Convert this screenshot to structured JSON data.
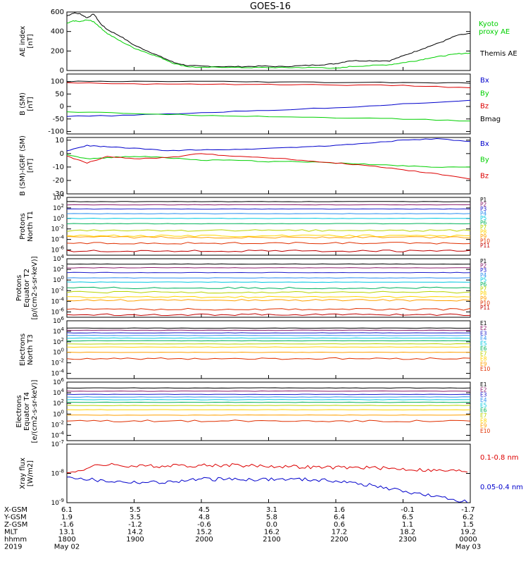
{
  "title": "GOES-16",
  "colors": {
    "black": "#000000",
    "green": "#00d000",
    "blue": "#0000cc",
    "red": "#dd0000",
    "P1": "#000000",
    "P2": "#8b1a6b",
    "P3": "#1c1ccc",
    "P4": "#2b8ff0",
    "P5": "#00c8e0",
    "P6": "#00b25a",
    "P7": "#b8d400",
    "P8": "#ffd400",
    "P9": "#ffa000",
    "P10": "#e03000",
    "P11": "#c00000"
  },
  "footer": {
    "rows": [
      {
        "label": "X-GSM",
        "values": [
          "6.1",
          "5.5",
          "4.5",
          "3.1",
          "1.6",
          "-0.1",
          "-1.7"
        ]
      },
      {
        "label": "Y-GSM",
        "values": [
          "1.9",
          "3.5",
          "4.8",
          "5.8",
          "6.4",
          "6.5",
          "6.2"
        ]
      },
      {
        "label": "Z-GSM",
        "values": [
          "-1.6",
          "-1.2",
          "-0.6",
          "0.0",
          "0.6",
          "1.1",
          "1.5"
        ]
      },
      {
        "label": "MLT",
        "values": [
          "13.1",
          "14.2",
          "15.2",
          "16.2",
          "17.2",
          "18.2",
          "19.2"
        ]
      },
      {
        "label": "hhmm",
        "values": [
          "1800",
          "1900",
          "2000",
          "2100",
          "2200",
          "2300",
          "0000"
        ]
      }
    ],
    "year": "2019",
    "date_start": "May 02",
    "date_end": "May 03"
  },
  "chart_data": [
    {
      "type": "line",
      "ylabel": "AE index\n[nT]",
      "ylim": [
        0,
        600
      ],
      "scale": "linear",
      "yticks": [
        "0",
        "200",
        "400",
        "600"
      ],
      "x_range_hours": [
        18,
        24
      ],
      "series": [
        {
          "name": "Themis AE",
          "color": "black",
          "x": [
            18.0,
            18.1,
            18.2,
            18.3,
            18.4,
            18.5,
            18.6,
            18.8,
            19.0,
            19.2,
            19.4,
            19.6,
            19.8,
            20.0,
            20.3,
            20.6,
            20.9,
            21.2,
            21.5,
            21.8,
            22.0,
            22.2,
            22.5,
            22.8,
            23.0,
            23.2,
            23.4,
            23.6,
            23.8,
            24.0
          ],
          "y": [
            560,
            590,
            580,
            540,
            580,
            480,
            420,
            350,
            260,
            200,
            140,
            80,
            50,
            45,
            40,
            40,
            45,
            40,
            50,
            60,
            70,
            100,
            100,
            100,
            150,
            200,
            250,
            300,
            360,
            380
          ]
        },
        {
          "name": "Kyoto\nproxy AE",
          "color": "green",
          "x": [
            18.0,
            18.1,
            18.2,
            18.3,
            18.4,
            18.5,
            18.6,
            18.8,
            19.0,
            19.2,
            19.4,
            19.6,
            19.8,
            20.0,
            20.3,
            20.6,
            20.9,
            21.2,
            21.5,
            21.8,
            22.0,
            22.2,
            22.5,
            22.8,
            23.0,
            23.2,
            23.4,
            23.6,
            23.8,
            24.0
          ],
          "y": [
            480,
            510,
            500,
            520,
            500,
            440,
            380,
            300,
            230,
            180,
            130,
            70,
            40,
            30,
            35,
            30,
            30,
            30,
            30,
            30,
            20,
            40,
            50,
            60,
            80,
            100,
            130,
            150,
            170,
            180
          ]
        }
      ]
    },
    {
      "type": "line",
      "ylabel": "B (SM)\n[nT]",
      "ylim": [
        -110,
        130
      ],
      "scale": "linear",
      "yticks": [
        "-100",
        "-50",
        "0",
        "50",
        "100"
      ],
      "series": [
        {
          "name": "Bx",
          "color": "blue",
          "x": [
            18,
            19,
            20,
            21,
            22,
            23,
            24
          ],
          "y": [
            -40,
            -35,
            -25,
            -15,
            -5,
            10,
            25
          ]
        },
        {
          "name": "By",
          "color": "green",
          "x": [
            18,
            19,
            20,
            21,
            22,
            23,
            24
          ],
          "y": [
            -22,
            -28,
            -35,
            -40,
            -45,
            -50,
            -58
          ]
        },
        {
          "name": "Bz",
          "color": "red",
          "x": [
            18,
            19,
            20,
            21,
            22,
            23,
            24
          ],
          "y": [
            95,
            90,
            90,
            88,
            86,
            84,
            75
          ]
        },
        {
          "name": "Bmag",
          "color": "black",
          "x": [
            18,
            19,
            20,
            21,
            22,
            23,
            24
          ],
          "y": [
            100,
            100,
            100,
            98,
            96,
            96,
            93
          ]
        }
      ]
    },
    {
      "type": "line",
      "ylabel": "B (SM)-IGRF (SM)\n[nT]",
      "ylim": [
        -30,
        12
      ],
      "scale": "linear",
      "yticks": [
        "-30",
        "-20",
        "-10",
        "0",
        "10"
      ],
      "series": [
        {
          "name": "Bx",
          "color": "blue",
          "x": [
            18,
            18.3,
            18.6,
            19,
            19.5,
            20,
            20.5,
            21,
            21.5,
            22,
            22.5,
            23,
            23.5,
            24
          ],
          "y": [
            2,
            6,
            5,
            4,
            2,
            3,
            3,
            4,
            5,
            6,
            8,
            10,
            11,
            9
          ]
        },
        {
          "name": "By",
          "color": "green",
          "x": [
            18,
            18.3,
            18.6,
            19,
            19.5,
            20,
            20.5,
            21,
            21.5,
            22,
            22.5,
            23,
            23.5,
            24
          ],
          "y": [
            -1,
            -4,
            -3,
            -2,
            -3,
            -5,
            -5,
            -6,
            -6,
            -7,
            -8,
            -9,
            -10,
            -10
          ]
        },
        {
          "name": "Bz",
          "color": "red",
          "x": [
            18,
            18.3,
            18.6,
            19,
            19.5,
            20,
            20.5,
            21,
            21.5,
            22,
            22.5,
            23,
            23.5,
            24
          ],
          "y": [
            -2,
            -7,
            -2,
            -4,
            -3,
            0,
            -2,
            -3,
            -5,
            -7,
            -9,
            -12,
            -15,
            -19
          ]
        }
      ]
    },
    {
      "type": "line",
      "ylabel": "Protons\nNorth T1",
      "ylim": [
        -7,
        4
      ],
      "scale": "log10",
      "yticks": [
        "10-6",
        "10-4",
        "10-2",
        "100",
        "102",
        "104"
      ],
      "series": [
        {
          "name": "P1",
          "color": "P1",
          "log10": 3.2
        },
        {
          "name": "P2",
          "color": "P2",
          "log10": 2.6
        },
        {
          "name": "P3",
          "color": "P3",
          "log10": 1.8
        },
        {
          "name": "P4",
          "color": "P4",
          "log10": 0.9
        },
        {
          "name": "P5",
          "color": "P5",
          "log10": 0.0
        },
        {
          "name": "P6",
          "color": "P6",
          "log10": -1.0
        },
        {
          "name": "P7",
          "color": "P7",
          "log10": -2.3
        },
        {
          "name": "P8",
          "color": "P8",
          "log10": -3.3
        },
        {
          "name": "P9",
          "color": "P9",
          "log10": -3.6
        },
        {
          "name": "P10",
          "color": "P10",
          "log10": -4.7
        },
        {
          "name": "P11",
          "color": "P11",
          "log10": -6.2
        }
      ]
    },
    {
      "type": "line",
      "ylabel": "Protons\nEquator T2\n[p/(cm2-s-sr-keV)]",
      "ylim": [
        -7,
        4
      ],
      "scale": "log10",
      "yticks": [
        "10-6",
        "10-4",
        "10-2",
        "100",
        "102",
        "104"
      ],
      "series": [
        {
          "name": "P1",
          "color": "P1",
          "log10": 3.0
        },
        {
          "name": "P2",
          "color": "P2",
          "log10": 2.3
        },
        {
          "name": "P3",
          "color": "P3",
          "log10": 1.4
        },
        {
          "name": "P4",
          "color": "P4",
          "log10": 0.4
        },
        {
          "name": "P5",
          "color": "P5",
          "log10": -0.4
        },
        {
          "name": "P6",
          "color": "P6",
          "log10": -1.5
        },
        {
          "name": "P7",
          "color": "P7",
          "log10": -2.3
        },
        {
          "name": "P8",
          "color": "P8",
          "log10": -3.2
        },
        {
          "name": "P9",
          "color": "P9",
          "log10": -3.8
        },
        {
          "name": "P10",
          "color": "P10",
          "log10": -5.5
        },
        {
          "name": "P11",
          "color": "P11",
          "log10": -6.5
        }
      ]
    },
    {
      "type": "line",
      "ylabel": "Electrons\nNorth T3",
      "ylim": [
        -5,
        6
      ],
      "scale": "log10",
      "yticks": [
        "10-4",
        "10-2",
        "100",
        "102",
        "104",
        "106"
      ],
      "series": [
        {
          "name": "E1",
          "color": "P1",
          "log10": 4.6
        },
        {
          "name": "E2",
          "color": "P2",
          "log10": 4.2
        },
        {
          "name": "E3",
          "color": "P3",
          "log10": 3.7
        },
        {
          "name": "E4",
          "color": "P4",
          "log10": 3.2
        },
        {
          "name": "E5",
          "color": "P5",
          "log10": 2.7
        },
        {
          "name": "E6",
          "color": "P6",
          "log10": 2.2
        },
        {
          "name": "E7",
          "color": "P7",
          "log10": 1.6
        },
        {
          "name": "E8",
          "color": "P8",
          "log10": 1.0
        },
        {
          "name": "E9",
          "color": "P9",
          "log10": 0.0
        },
        {
          "name": "E10",
          "color": "P10",
          "log10": -1.2
        }
      ]
    },
    {
      "type": "line",
      "ylabel": "Electrons\nEquator T4\n[e/(cm2-s-sr-keV)]",
      "ylim": [
        -5,
        6
      ],
      "scale": "log10",
      "yticks": [
        "10-4",
        "10-2",
        "100",
        "102",
        "104",
        "106"
      ],
      "series": [
        {
          "name": "E1",
          "color": "P1",
          "log10": 4.9
        },
        {
          "name": "E2",
          "color": "P2",
          "log10": 4.3
        },
        {
          "name": "E3",
          "color": "P3",
          "log10": 3.7
        },
        {
          "name": "E4",
          "color": "P4",
          "log10": 3.2
        },
        {
          "name": "E5",
          "color": "P5",
          "log10": 2.7
        },
        {
          "name": "E6",
          "color": "P6",
          "log10": 2.2
        },
        {
          "name": "E7",
          "color": "P7",
          "log10": 1.6
        },
        {
          "name": "E8",
          "color": "P8",
          "log10": 0.8
        },
        {
          "name": "E9",
          "color": "P9",
          "log10": -0.2
        },
        {
          "name": "E10",
          "color": "P10",
          "log10": -1.3
        }
      ]
    },
    {
      "type": "line",
      "ylabel": "Xray flux\n[W/m2]",
      "ylim": [
        -9,
        -7
      ],
      "scale": "log10",
      "yticks": [
        "10-9",
        "10-8",
        "10-7"
      ],
      "series": [
        {
          "name": "0.1-0.8 nm",
          "color": "red",
          "x": [
            18,
            18.5,
            19,
            19.5,
            20,
            20.5,
            21,
            21.5,
            22,
            22.5,
            23,
            23.5,
            24
          ],
          "log10": [
            -8.0,
            -7.7,
            -7.75,
            -7.75,
            -7.72,
            -7.72,
            -7.75,
            -7.78,
            -7.8,
            -7.8,
            -7.85,
            -7.9,
            -7.92
          ]
        },
        {
          "name": "0.05-0.4 nm",
          "color": "blue",
          "x": [
            18,
            18.5,
            19,
            19.5,
            20,
            20.5,
            21,
            21.5,
            22,
            22.5,
            23,
            23.5,
            24
          ],
          "log10": [
            -8.1,
            -8.25,
            -8.3,
            -8.3,
            -8.2,
            -8.2,
            -8.2,
            -8.2,
            -8.25,
            -8.4,
            -8.6,
            -8.8,
            -9.0
          ]
        }
      ]
    }
  ]
}
